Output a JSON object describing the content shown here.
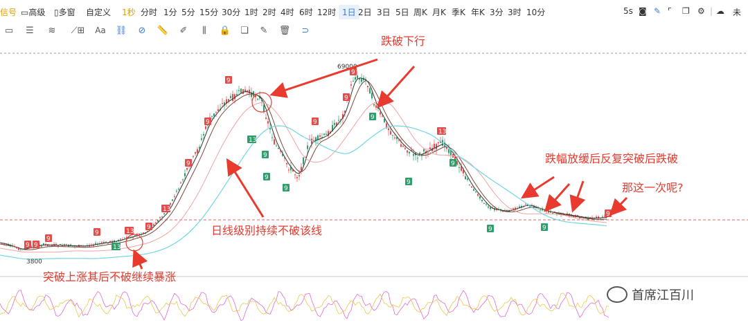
{
  "toolbar": {
    "signal": "信号",
    "advanced": "高级",
    "multiwindow": "多窗",
    "custom": "自定义",
    "intervals": [
      "1秒",
      "分时",
      "1分",
      "5分",
      "15分",
      "30分",
      "1时",
      "2时",
      "4时",
      "6时",
      "12时",
      "1日",
      "2日",
      "3日",
      "5日",
      "周K",
      "月K",
      "季K",
      "年K",
      "3分",
      "3时",
      "10分"
    ],
    "active_interval": "1日",
    "replay_speed": "5s",
    "unread": "未"
  },
  "drawing_tools": [
    "rectangle-icon",
    "list-icon",
    "wave-icon",
    "trend-icon",
    "measure-icon",
    "text-icon",
    "link-icon",
    "unlink-icon",
    "ruler-icon",
    "brush-icon",
    "candles-icon",
    "lock-icon",
    "copy-icon",
    "edit-icon",
    "trash-icon",
    "magnet-icon"
  ],
  "chart": {
    "price_high_label": "69000",
    "price_low_label": "3800",
    "annotations": {
      "break_down": "跌破下行",
      "daily_line": "日线级别持续不破该线",
      "breakout": "突破上涨其后不破继续暴涨",
      "amplitude": "跌幅放缓后反复突破后跌破",
      "question": "那这一次呢?"
    },
    "td_labels": [
      "9",
      "9",
      "9",
      "9",
      "13",
      "13",
      "9",
      "13",
      "9",
      "9",
      "9",
      "13",
      "9",
      "9",
      "9",
      "9",
      "9",
      "9",
      "9",
      "9",
      "13",
      "9",
      "9",
      "9",
      "9"
    ],
    "colors": {
      "up": "#2e9e6a",
      "down": "#e44b4b",
      "ma_pink": "#f0a3a3",
      "ma_cyan": "#6fd6e6",
      "ma_brown": "#7a4a3a",
      "ma_dark": "#333333",
      "annotation": "#e83a2e",
      "osc_pink": "#e06ad0",
      "osc_yellow": "#e6c84a"
    }
  },
  "watermark": "首席江百川"
}
